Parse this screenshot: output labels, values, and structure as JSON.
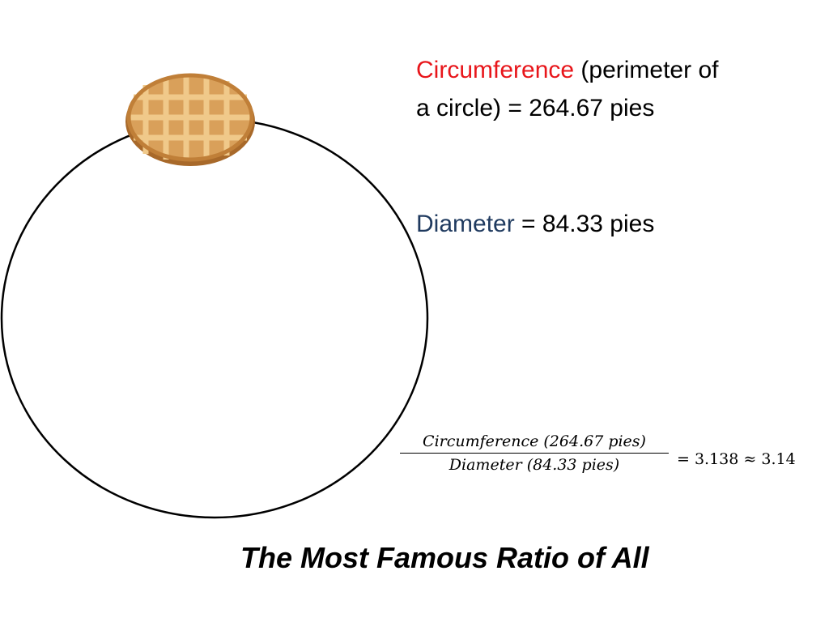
{
  "slide": {
    "circumference": {
      "term": "Circumference",
      "line1_rest": "(perimeter of",
      "line2": "a circle) = 264.67 pies"
    },
    "diameter": {
      "term": "Diameter",
      "rest": "= 84.33 pies"
    },
    "formula": {
      "numerator": "Circumference (264.67 pies)",
      "denominator": "Diameter (84.33 pies)",
      "result": "= 3.138 ≈ 3.14"
    },
    "title": "The Most Famous Ratio of All"
  }
}
